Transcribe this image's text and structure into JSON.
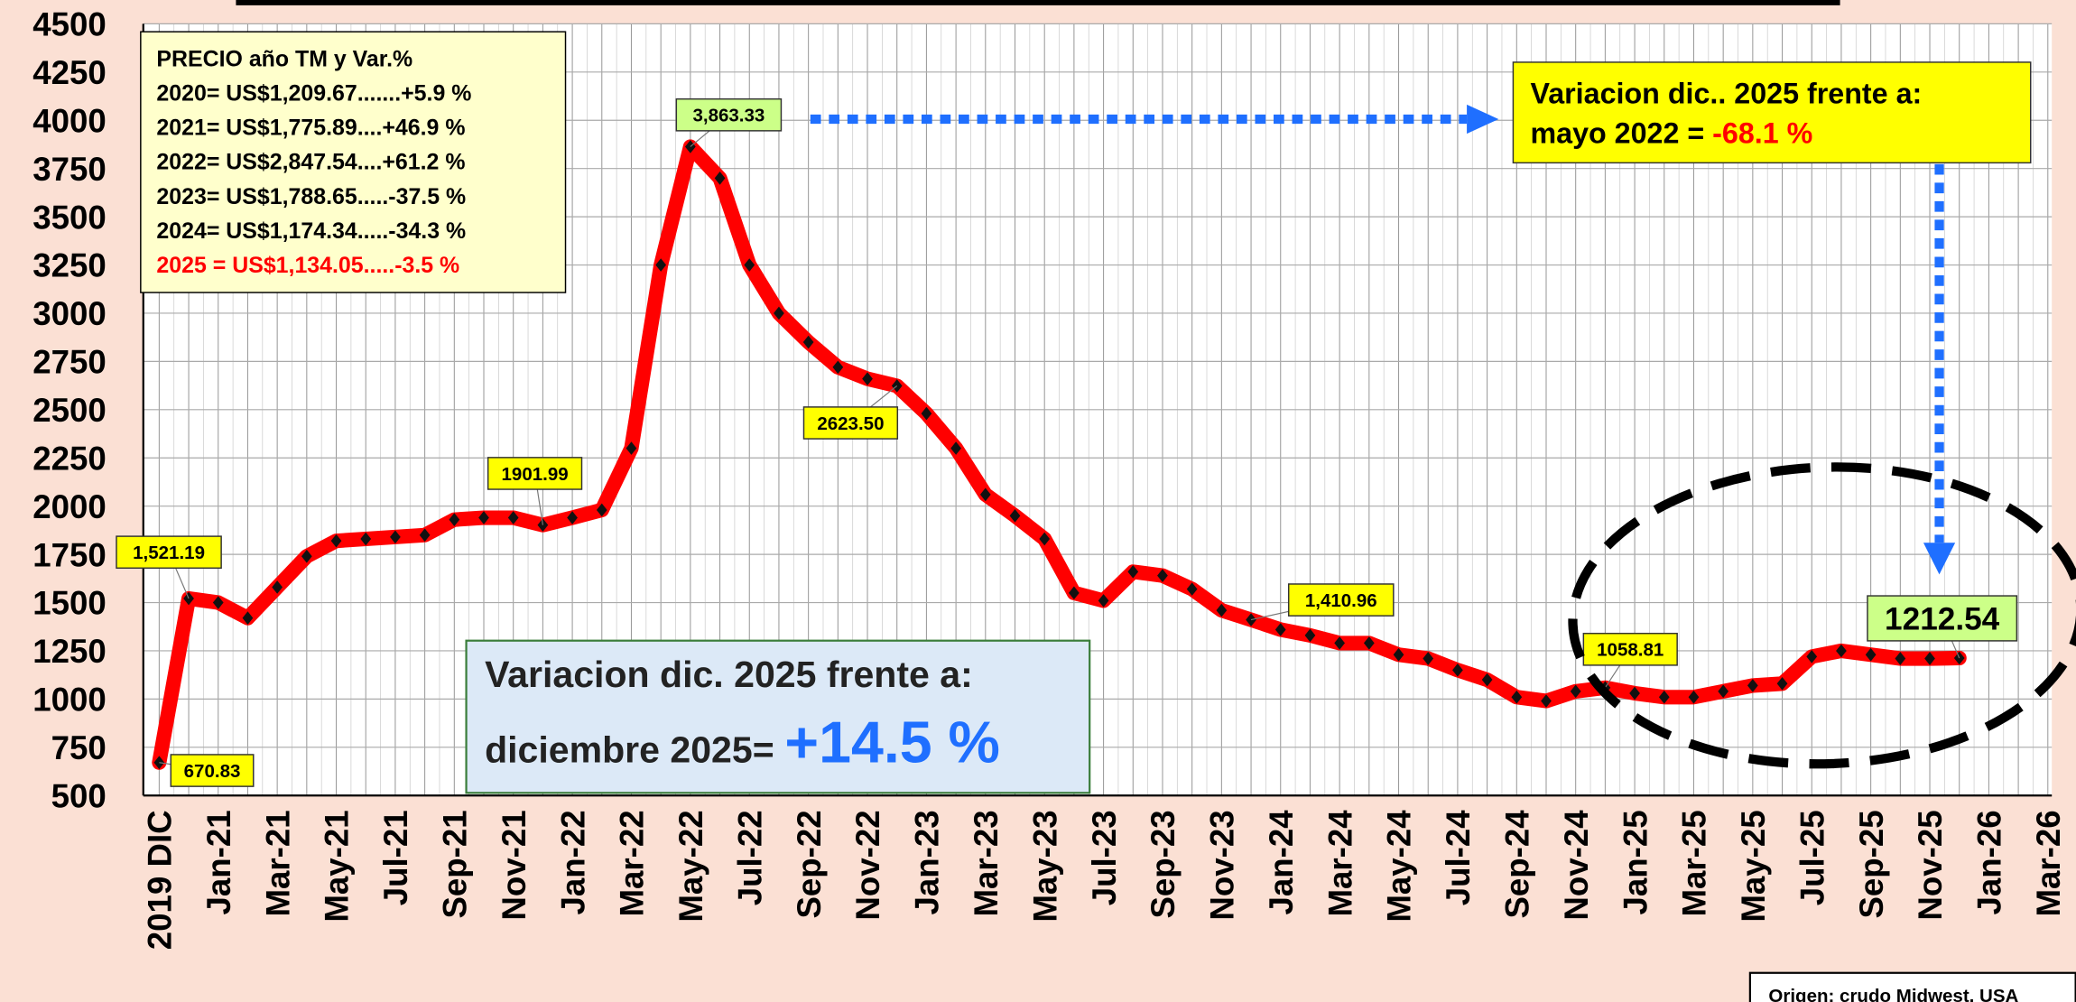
{
  "chart_data": {
    "type": "line",
    "categories": [
      "2019 DIC",
      null,
      "Jan-21",
      null,
      "Mar-21",
      null,
      "May-21",
      null,
      "Jul-21",
      null,
      "Sep-21",
      null,
      "Nov-21",
      null,
      "Jan-22",
      null,
      "Mar-22",
      null,
      "May-22",
      null,
      "Jul-22",
      null,
      "Sep-22",
      null,
      "Nov-22",
      null,
      "Jan-23",
      null,
      "Mar-23",
      null,
      "May-23",
      null,
      "Jul-23",
      null,
      "Sep-23",
      null,
      "Nov-23",
      null,
      "Jan-24",
      null,
      "Mar-24",
      null,
      "May-24",
      null,
      "Jul-24",
      null,
      "Sep-24",
      null,
      "Nov-24",
      null,
      "Jan-25",
      null,
      "Mar-25",
      null,
      "May-25",
      null,
      "Jul-25",
      null,
      "Sep-25",
      null,
      "Nov-25",
      null,
      "Jan-26",
      null,
      "Mar-26"
    ],
    "series": [
      {
        "color": "#ff0000",
        "values": [
          670.83,
          1521.19,
          1500,
          1420,
          1580,
          1740,
          1820,
          1830,
          1840,
          1850,
          1930,
          1940,
          1940,
          1901.99,
          1940,
          1980,
          2300,
          3250,
          3863.33,
          3700,
          3250,
          3000,
          2850,
          2720,
          2660,
          2623.5,
          2480,
          2300,
          2060,
          1950,
          1830,
          1550,
          1510,
          1660,
          1640,
          1570,
          1460,
          1410.96,
          1360,
          1330,
          1290,
          1290,
          1230,
          1210,
          1150,
          1100,
          1010,
          990,
          1040,
          1058.81,
          1030,
          1010,
          1010,
          1040,
          1070,
          1080,
          1220,
          1250,
          1230,
          1210,
          1210,
          1212.54,
          null,
          null,
          null
        ],
        "value_labels": [
          "670.83",
          "1,521.19",
          null,
          null,
          null,
          null,
          null,
          null,
          null,
          null,
          null,
          null,
          null,
          "1901.99",
          null,
          null,
          null,
          null,
          "3,863.33",
          null,
          null,
          null,
          null,
          null,
          null,
          "2623.50",
          null,
          null,
          null,
          null,
          null,
          null,
          null,
          null,
          null,
          null,
          null,
          "1,410.96",
          null,
          null,
          null,
          null,
          null,
          null,
          null,
          null,
          null,
          null,
          null,
          "1058.81",
          null,
          null,
          null,
          null,
          null,
          null,
          null,
          null,
          null,
          null,
          null,
          "1212.54",
          null,
          null,
          null
        ]
      }
    ],
    "ylim": [
      500,
      4500
    ],
    "yticks": [
      500,
      750,
      1000,
      1250,
      1500,
      1750,
      2000,
      2250,
      2500,
      2750,
      3000,
      3250,
      3500,
      3750,
      4000,
      4250,
      4500
    ],
    "grid": true,
    "info_box": {
      "title": "PRECIO año TM y Var.%",
      "lines": [
        "2020= US$1,209.67.......+5.9 %",
        "2021= US$1,775.89....+46.9 %",
        "2022= US$2,847.54....+61.2 %",
        "2023= US$1,788.65.....-37.5 %",
        "2024= US$1,174.34.....-34.3 %",
        "2025 = US$1,134.05.....-3.5 %"
      ]
    },
    "note_right": {
      "line1": "Variacion dic.. 2025 frente a:",
      "line2": "mayo 2022 = ",
      "value": "-68.1 %"
    },
    "note_center": {
      "line1": "Variacion dic. 2025 frente a:",
      "line2": "diciembre 2025=",
      "value": "+14.5 %"
    },
    "source": "Origen: crudo Midwest, USA"
  }
}
